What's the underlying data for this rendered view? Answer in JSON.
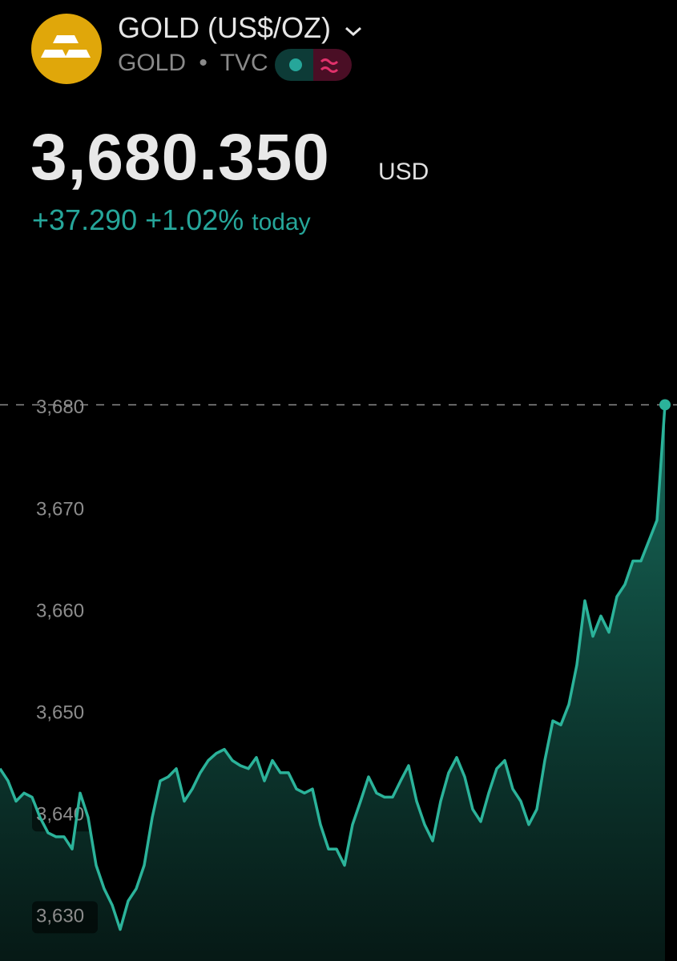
{
  "header": {
    "title": "GOLD (US$/OZ)",
    "symbol": "GOLD",
    "exchange": "TVC",
    "price": "3,680.350",
    "currency": "USD",
    "change": "+37.290",
    "change_percent": "+1.02%",
    "period": "today"
  },
  "chart_data": {
    "type": "area",
    "color": "#2bb39a",
    "values": [
      3644.6,
      3643.4,
      3641.4,
      3642.2,
      3641.8,
      3639.8,
      3638.3,
      3637.9,
      3637.9,
      3636.7,
      3642.2,
      3639.8,
      3635.1,
      3632.8,
      3631.2,
      3628.8,
      3631.6,
      3632.8,
      3635.1,
      3639.8,
      3643.4,
      3643.8,
      3644.6,
      3641.4,
      3642.6,
      3644.2,
      3645.4,
      3646.1,
      3646.5,
      3645.4,
      3644.9,
      3644.6,
      3645.7,
      3643.4,
      3645.4,
      3644.2,
      3644.2,
      3642.6,
      3642.2,
      3642.6,
      3639.1,
      3636.7,
      3636.7,
      3635.1,
      3639.1,
      3641.4,
      3643.8,
      3642.2,
      3641.8,
      3641.8,
      3643.4,
      3644.9,
      3641.4,
      3639.1,
      3637.5,
      3641.4,
      3644.2,
      3645.7,
      3643.8,
      3640.6,
      3639.4,
      3642.2,
      3644.6,
      3645.4,
      3642.6,
      3641.4,
      3639.1,
      3640.6,
      3645.4,
      3649.3,
      3648.9,
      3650.9,
      3654.8,
      3661.1,
      3657.6,
      3659.6,
      3658.0,
      3661.5,
      3662.7,
      3665.0,
      3665.0,
      3667.0,
      3669.0,
      3680.35
    ],
    "ylim": [
      3625.7,
      3685.5
    ],
    "yticks": [
      {
        "value": 3630,
        "label": "3,630"
      },
      {
        "value": 3640,
        "label": "3,640"
      },
      {
        "value": 3650,
        "label": "3,650"
      },
      {
        "value": 3660,
        "label": "3,660"
      },
      {
        "value": 3670,
        "label": "3,670"
      },
      {
        "value": 3680,
        "label": "3,680"
      }
    ]
  }
}
